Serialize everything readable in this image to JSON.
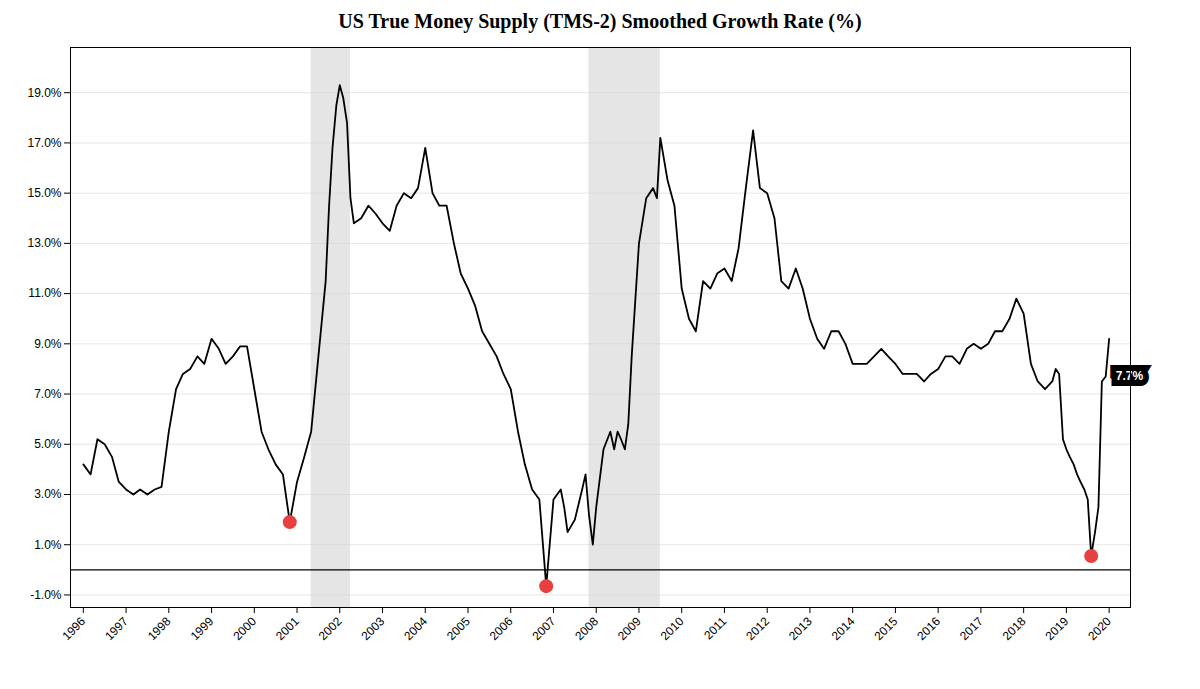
{
  "chart_data": {
    "type": "line",
    "title": "US True Money Supply (TMS-2) Smoothed Growth Rate (%)",
    "color": "#000000",
    "x": [
      1996.0,
      1996.17,
      1996.33,
      1996.5,
      1996.67,
      1996.83,
      1997.0,
      1997.17,
      1997.33,
      1997.5,
      1997.67,
      1997.83,
      1998.0,
      1998.17,
      1998.33,
      1998.5,
      1998.67,
      1998.83,
      1999.0,
      1999.17,
      1999.33,
      1999.5,
      1999.67,
      1999.83,
      2000.0,
      2000.17,
      2000.33,
      2000.5,
      2000.67,
      2000.83,
      2001.0,
      2001.17,
      2001.33,
      2001.5,
      2001.67,
      2001.75,
      2001.83,
      2001.92,
      2002.0,
      2002.08,
      2002.17,
      2002.25,
      2002.33,
      2002.5,
      2002.67,
      2002.83,
      2003.0,
      2003.17,
      2003.33,
      2003.5,
      2003.67,
      2003.83,
      2004.0,
      2004.17,
      2004.33,
      2004.5,
      2004.67,
      2004.83,
      2005.0,
      2005.17,
      2005.33,
      2005.5,
      2005.67,
      2005.83,
      2006.0,
      2006.17,
      2006.33,
      2006.5,
      2006.67,
      2006.83,
      2007.0,
      2007.17,
      2007.25,
      2007.33,
      2007.5,
      2007.67,
      2007.75,
      2007.83,
      2007.92,
      2008.0,
      2008.17,
      2008.33,
      2008.42,
      2008.5,
      2008.58,
      2008.67,
      2008.75,
      2008.83,
      2009.0,
      2009.17,
      2009.33,
      2009.42,
      2009.5,
      2009.67,
      2009.83,
      2010.0,
      2010.17,
      2010.33,
      2010.5,
      2010.67,
      2010.83,
      2011.0,
      2011.17,
      2011.33,
      2011.5,
      2011.67,
      2011.83,
      2012.0,
      2012.17,
      2012.33,
      2012.5,
      2012.67,
      2012.83,
      2013.0,
      2013.17,
      2013.33,
      2013.5,
      2013.67,
      2013.83,
      2014.0,
      2014.17,
      2014.33,
      2014.5,
      2014.67,
      2014.83,
      2015.0,
      2015.17,
      2015.33,
      2015.5,
      2015.67,
      2015.83,
      2016.0,
      2016.17,
      2016.33,
      2016.5,
      2016.67,
      2016.83,
      2017.0,
      2017.17,
      2017.33,
      2017.5,
      2017.67,
      2017.83,
      2018.0,
      2018.17,
      2018.33,
      2018.5,
      2018.67,
      2018.75,
      2018.83,
      2018.92,
      2019.0,
      2019.08,
      2019.17,
      2019.25,
      2019.33,
      2019.42,
      2019.5,
      2019.58,
      2019.67,
      2019.75,
      2019.83,
      2019.92,
      2020.0
    ],
    "values": [
      4.2,
      3.8,
      5.2,
      5.0,
      4.5,
      3.5,
      3.2,
      3.0,
      3.2,
      3.0,
      3.2,
      3.3,
      5.5,
      7.2,
      7.8,
      8.0,
      8.5,
      8.2,
      9.2,
      8.8,
      8.2,
      8.5,
      8.9,
      8.9,
      7.2,
      5.5,
      4.8,
      4.2,
      3.8,
      1.9,
      3.5,
      4.5,
      5.5,
      8.5,
      11.5,
      14.5,
      16.8,
      18.5,
      19.3,
      18.8,
      17.8,
      14.8,
      13.8,
      14.0,
      14.5,
      14.2,
      13.8,
      13.5,
      14.5,
      15.0,
      14.8,
      15.2,
      16.8,
      15.0,
      14.5,
      14.5,
      13.0,
      11.8,
      11.2,
      10.5,
      9.5,
      9.0,
      8.5,
      7.8,
      7.2,
      5.5,
      4.2,
      3.2,
      2.8,
      -0.65,
      2.8,
      3.2,
      2.5,
      1.5,
      2.0,
      3.2,
      3.8,
      2.2,
      1.0,
      2.5,
      4.8,
      5.5,
      4.8,
      5.5,
      5.2,
      4.8,
      5.8,
      8.5,
      13.0,
      14.8,
      15.2,
      14.8,
      17.2,
      15.5,
      14.5,
      11.2,
      10.0,
      9.5,
      11.5,
      11.2,
      11.8,
      12.0,
      11.5,
      12.8,
      15.2,
      17.5,
      15.2,
      15.0,
      14.0,
      11.5,
      11.2,
      12.0,
      11.2,
      10.0,
      9.2,
      8.8,
      9.5,
      9.5,
      9.0,
      8.2,
      8.2,
      8.2,
      8.5,
      8.8,
      8.5,
      8.2,
      7.8,
      7.8,
      7.8,
      7.5,
      7.8,
      8.0,
      8.5,
      8.5,
      8.2,
      8.8,
      9.0,
      8.8,
      9.0,
      9.5,
      9.5,
      10.0,
      10.8,
      10.2,
      8.2,
      7.5,
      7.2,
      7.5,
      8.0,
      7.8,
      5.2,
      4.8,
      4.5,
      4.2,
      3.8,
      3.5,
      3.2,
      2.8,
      0.55,
      1.5,
      2.5,
      7.5,
      7.7,
      9.2
    ],
    "recession_periods": [
      [
        2001.33,
        2002.25
      ],
      [
        2007.83,
        2009.5
      ]
    ],
    "recession_color": "#d3d3d3",
    "highlights": {
      "x": [
        2000.83,
        2006.83,
        2019.58
      ],
      "values": [
        1.9,
        -0.65,
        0.55
      ],
      "color": "#e84040"
    },
    "annotations": [
      {
        "text": "7.7%",
        "x": 2019.92,
        "y": 7.7
      }
    ],
    "zero_line": 0.0,
    "xlim": [
      1995.7,
      2020.5
    ],
    "xticks": [
      1996,
      1997,
      1998,
      1999,
      2000,
      2001,
      2002,
      2003,
      2004,
      2005,
      2006,
      2007,
      2008,
      2009,
      2010,
      2011,
      2012,
      2013,
      2014,
      2015,
      2016,
      2017,
      2018,
      2019,
      2020
    ],
    "ylim": [
      -1.5,
      20.8
    ],
    "yticks": [
      {
        "value": -1.0,
        "label": "-1.0%"
      },
      {
        "value": 1.0,
        "label": "1.0%"
      },
      {
        "value": 3.0,
        "label": "3.0%"
      },
      {
        "value": 5.0,
        "label": "5.0%"
      },
      {
        "value": 7.0,
        "label": "7.0%"
      },
      {
        "value": 9.0,
        "label": "9.0%"
      },
      {
        "value": 11.0,
        "label": "11.0%"
      },
      {
        "value": 13.0,
        "label": "13.0%"
      },
      {
        "value": 15.0,
        "label": "15.0%"
      },
      {
        "value": 17.0,
        "label": "17.0%"
      },
      {
        "value": 19.0,
        "label": "19.0%"
      }
    ],
    "grid": "y"
  }
}
